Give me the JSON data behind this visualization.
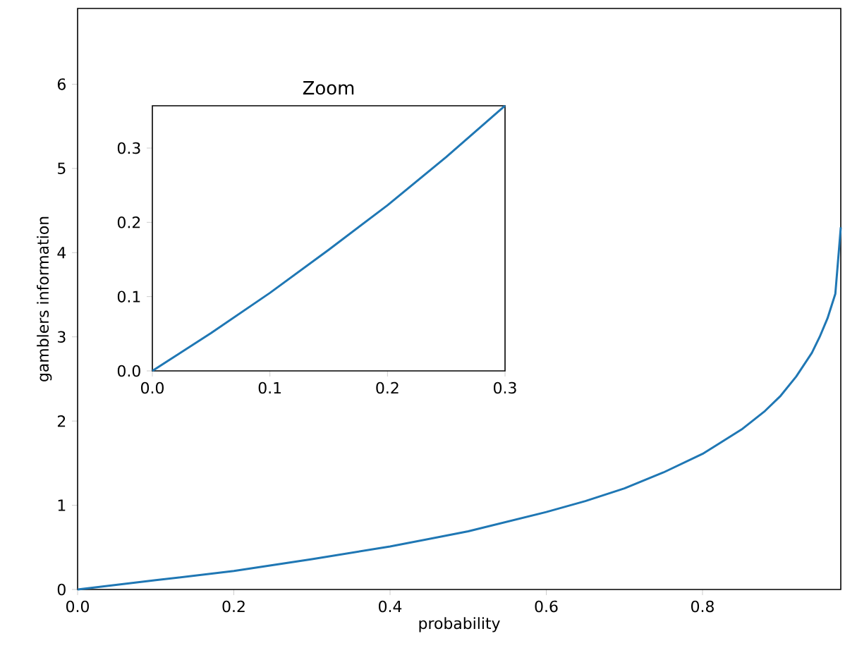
{
  "chart_data": [
    {
      "type": "line",
      "xlabel": "probability",
      "ylabel": "gamblers information",
      "color": "#1f77b4",
      "x": [
        0,
        0.1,
        0.2,
        0.3,
        0.4,
        0.5,
        0.6,
        0.65,
        0.7,
        0.75,
        0.8,
        0.85,
        0.88,
        0.9,
        0.92,
        0.94,
        0.95,
        0.96,
        0.97,
        0.977
      ],
      "values": [
        0,
        0.11,
        0.22,
        0.36,
        0.51,
        0.69,
        0.92,
        1.05,
        1.2,
        1.39,
        1.61,
        1.9,
        2.12,
        2.3,
        2.53,
        2.81,
        3.0,
        3.22,
        3.51,
        4.3
      ],
      "xlim": [
        0,
        0.977
      ],
      "ylim": [
        0,
        6.9
      ],
      "xticks": [
        {
          "value": 0,
          "label": "0.0"
        },
        {
          "value": 0.2,
          "label": "0.2"
        },
        {
          "value": 0.4,
          "label": "0.4"
        },
        {
          "value": 0.6,
          "label": "0.6"
        },
        {
          "value": 0.8,
          "label": "0.8"
        }
      ],
      "yticks": [
        0,
        1,
        2,
        3,
        4,
        5,
        6
      ]
    },
    {
      "type": "line",
      "title": "Zoom",
      "color": "#1f77b4",
      "x": [
        0,
        0.05,
        0.1,
        0.15,
        0.2,
        0.25,
        0.3
      ],
      "values": [
        0,
        0.051,
        0.105,
        0.163,
        0.223,
        0.288,
        0.357
      ],
      "xlim": [
        0,
        0.3
      ],
      "ylim": [
        0,
        0.357
      ],
      "xticks": [
        {
          "value": 0,
          "label": "0.0"
        },
        {
          "value": 0.1,
          "label": "0.1"
        },
        {
          "value": 0.2,
          "label": "0.2"
        },
        {
          "value": 0.3,
          "label": "0.3"
        }
      ],
      "yticks": [
        {
          "value": 0,
          "label": "0.0"
        },
        {
          "value": 0.1,
          "label": "0.1"
        },
        {
          "value": 0.2,
          "label": "0.2"
        },
        {
          "value": 0.3,
          "label": "0.3"
        }
      ]
    }
  ]
}
